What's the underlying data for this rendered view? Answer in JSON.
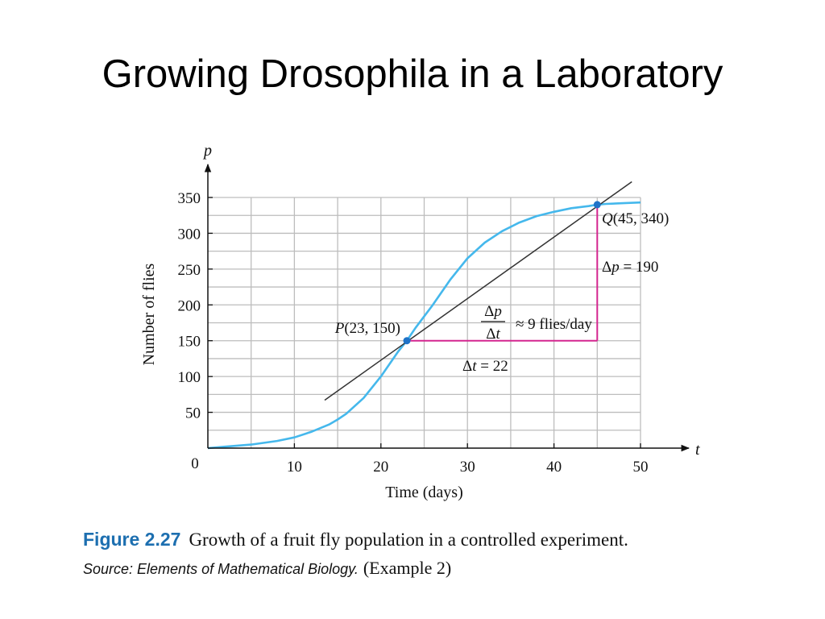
{
  "slide": {
    "title": "Growing Drosophila in a Laboratory"
  },
  "caption": {
    "figure_label": "Figure 2.27",
    "text": "Growth of a fruit fly population in a controlled experiment.",
    "source_label": "Source: Elements of Mathematical Biology.",
    "source_example": "(Example 2)"
  },
  "colors": {
    "curve": "#45b8ec",
    "secant": "#333333",
    "delta_lines": "#d4268f",
    "grid": "#bdbdbd",
    "figure_label": "#1d6fb0"
  },
  "chart_data": {
    "type": "line",
    "xlabel": "Time (days)",
    "ylabel": "Number of flies",
    "x_axis_symbol": "t",
    "y_axis_symbol": "p",
    "xlim": [
      0,
      50
    ],
    "ylim": [
      0,
      350
    ],
    "xticks": [
      10,
      20,
      30,
      40,
      50
    ],
    "yticks": [
      50,
      100,
      150,
      200,
      250,
      300,
      350
    ],
    "origin_label": "0",
    "grid": true,
    "series": [
      {
        "x": [
          0,
          2,
          5,
          8,
          10,
          12,
          14,
          15,
          16,
          18,
          20,
          22,
          23,
          24,
          26,
          28,
          30,
          32,
          34,
          36,
          38,
          40,
          42,
          44,
          45,
          46,
          48,
          50
        ],
        "y": [
          0,
          2,
          5,
          10,
          15,
          23,
          33,
          40,
          48,
          70,
          100,
          135,
          150,
          168,
          200,
          235,
          265,
          287,
          303,
          315,
          324,
          330,
          335,
          338,
          340,
          341,
          342,
          343
        ]
      }
    ],
    "secant_line": {
      "x": [
        13.5,
        49
      ],
      "y": [
        67,
        372
      ]
    },
    "points": [
      {
        "name": "P",
        "x": 23,
        "y": 150,
        "label": "(23, 150)"
      },
      {
        "name": "Q",
        "x": 45,
        "y": 340,
        "label": "(45, 340)"
      }
    ],
    "annotations": {
      "delta_p": "Δp = 190",
      "delta_t": "Δt = 22",
      "rate_numerator": "Δp",
      "rate_denominator": "Δt",
      "rate_value": "≈ 9 flies/day"
    }
  }
}
